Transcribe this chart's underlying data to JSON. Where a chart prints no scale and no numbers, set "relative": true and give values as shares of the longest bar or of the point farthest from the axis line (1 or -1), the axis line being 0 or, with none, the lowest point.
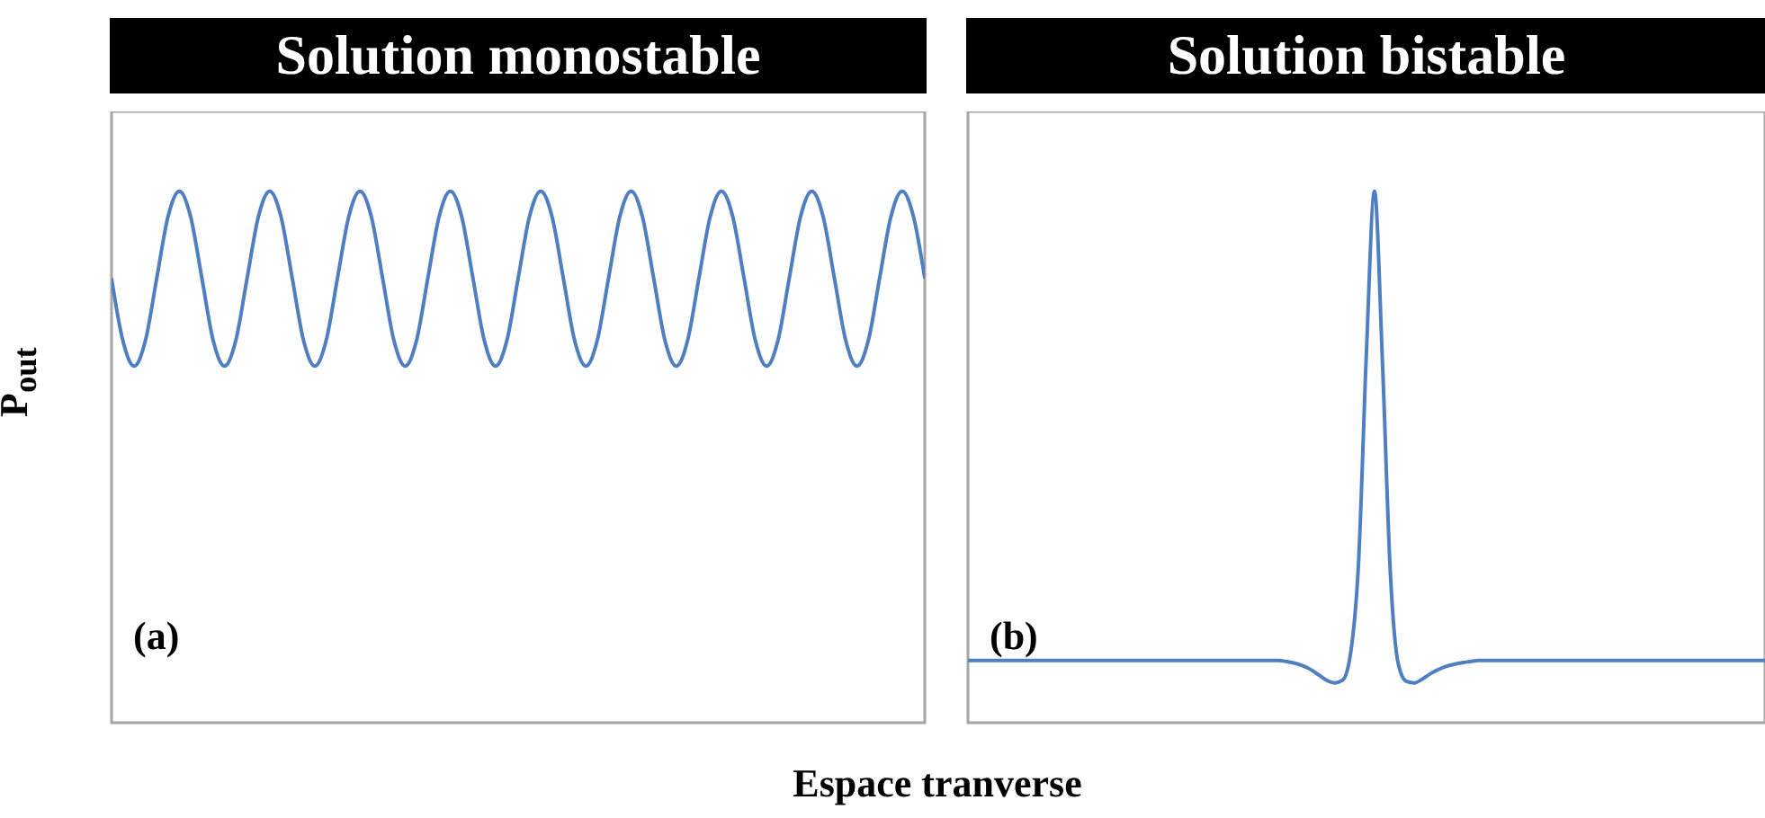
{
  "chart_data": [
    {
      "type": "line",
      "title": "Solution monostable",
      "ylabel": "P$_{out}$",
      "relative": true,
      "annotations": [
        "(a)"
      ],
      "categories": [
        null,
        null,
        null,
        null,
        null,
        null,
        null,
        null,
        null,
        null,
        null,
        null,
        null,
        null,
        null,
        null,
        null,
        null,
        null,
        null,
        null,
        null,
        null,
        null,
        null,
        null,
        null,
        null,
        null,
        null,
        null,
        null,
        null,
        null,
        null,
        null,
        null,
        null,
        null,
        null,
        null,
        null,
        null,
        null,
        null,
        null,
        null,
        null,
        null,
        null,
        null,
        null,
        null,
        null,
        null,
        null,
        null,
        null,
        null,
        null,
        null,
        null,
        null,
        null,
        null,
        null,
        null,
        null,
        null,
        null,
        null,
        null,
        null
      ],
      "series": [
        {
          "color": "#4f7fc1",
          "values": [
            0.836,
            0.719,
            0.671,
            0.719,
            0.836,
            0.952,
            1,
            0.952,
            0.836,
            0.719,
            0.671,
            0.719,
            0.836,
            0.952,
            1,
            0.952,
            0.836,
            0.719,
            0.671,
            0.719,
            0.836,
            0.952,
            1,
            0.952,
            0.836,
            0.719,
            0.671,
            0.719,
            0.836,
            0.952,
            1,
            0.952,
            0.836,
            0.719,
            0.671,
            0.719,
            0.836,
            0.952,
            1,
            0.952,
            0.836,
            0.719,
            0.671,
            0.719,
            0.836,
            0.952,
            1,
            0.952,
            0.836,
            0.719,
            0.671,
            0.719,
            0.836,
            0.952,
            1,
            0.952,
            0.836,
            0.719,
            0.671,
            0.719,
            0.836,
            0.952,
            1,
            0.952,
            0.836,
            0.719,
            0.671,
            0.719,
            0.836,
            0.952,
            1,
            0.952,
            0.836
          ]
        }
      ]
    },
    {
      "type": "line",
      "title": "Solution bistable",
      "xlabel": "Espace tranverse",
      "relative": true,
      "annotations": [
        "(b)"
      ],
      "categories": [
        null,
        null,
        null,
        null,
        null,
        null,
        null,
        null,
        null,
        null,
        null,
        null,
        null,
        null,
        null,
        null,
        null,
        null,
        null,
        null,
        null,
        null,
        null,
        null,
        null,
        null,
        null,
        null,
        null,
        null,
        null,
        null,
        null,
        null,
        null,
        null,
        null,
        null,
        null,
        null,
        null,
        null,
        null,
        null,
        null,
        null,
        null,
        null,
        null,
        null,
        null,
        null,
        null,
        null,
        null,
        null,
        null,
        null,
        null,
        null,
        null,
        null,
        null,
        null,
        null,
        null,
        null,
        null,
        null,
        null,
        null,
        null,
        null,
        null,
        null,
        null,
        null,
        null,
        null,
        null,
        null,
        null,
        null,
        null,
        null,
        null,
        null,
        null,
        null,
        null,
        null,
        null,
        null,
        null,
        null,
        null,
        null,
        null,
        null,
        null,
        null
      ],
      "series": [
        {
          "color": "#4f7fc1",
          "values": [
            0.117,
            0.117,
            0.117,
            0.117,
            0.117,
            0.117,
            0.117,
            0.117,
            0.117,
            0.117,
            0.117,
            0.117,
            0.117,
            0.117,
            0.117,
            0.117,
            0.117,
            0.117,
            0.117,
            0.117,
            0.117,
            0.117,
            0.117,
            0.117,
            0.117,
            0.117,
            0.117,
            0.117,
            0.117,
            0.117,
            0.117,
            0.117,
            0.117,
            0.117,
            0.117,
            0.117,
            0.117,
            0.117,
            0.117,
            0.117,
            0.115,
            0.112,
            0.107,
            0.1,
            0.09,
            0.08,
            0.075,
            0.08,
            0.13,
            0.3,
            0.7,
            1,
            0.68,
            0.28,
            0.11,
            0.078,
            0.075,
            0.082,
            0.092,
            0.1,
            0.106,
            0.11,
            0.113,
            0.115,
            0.117,
            0.117,
            0.117,
            0.117,
            0.117,
            0.117,
            0.117,
            0.117,
            0.117,
            0.117,
            0.117,
            0.117,
            0.117,
            0.117,
            0.117,
            0.117,
            0.117,
            0.117,
            0.117,
            0.117,
            0.117,
            0.117,
            0.117,
            0.117,
            0.117,
            0.117,
            0.117,
            0.117,
            0.117,
            0.117,
            0.117,
            0.117,
            0.117,
            0.117,
            0.117,
            0.117,
            0.117
          ]
        }
      ]
    }
  ]
}
